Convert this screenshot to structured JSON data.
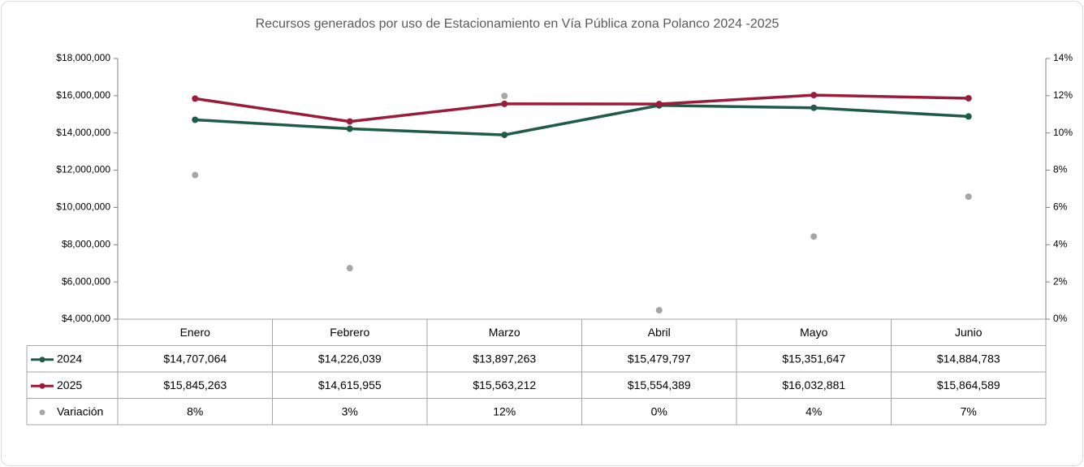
{
  "chart_data": {
    "type": "line",
    "title": "Recursos generados por uso de Estacionamiento en Vía Pública zona Polanco 2024 -2025",
    "categories": [
      "Enero",
      "Febrero",
      "Marzo",
      "Abril",
      "Mayo",
      "Junio"
    ],
    "series": [
      {
        "name": "2024",
        "color": "#1e5c45",
        "values": [
          14707064,
          14226039,
          13897263,
          15479797,
          15351647,
          14884783
        ],
        "value_labels": [
          "$14,707,064",
          "$14,226,039",
          "$13,897,263",
          "$15,479,797",
          "$15,351,647",
          "$14,884,783"
        ]
      },
      {
        "name": "2025",
        "color": "#9b1b3b",
        "values": [
          15845263,
          14615955,
          15563212,
          15554389,
          16032881,
          15864589
        ],
        "value_labels": [
          "$15,845,263",
          "$14,615,955",
          "$15,563,212",
          "$15,554,389",
          "$16,032,881",
          "$15,864,589"
        ]
      },
      {
        "name": "Variación",
        "color": "#a6a6a6",
        "axis": "y2",
        "type": "scatter",
        "values": [
          7.74,
          2.74,
          11.99,
          0.48,
          4.44,
          6.58
        ],
        "value_labels": [
          "8%",
          "3%",
          "12%",
          "0%",
          "4%",
          "7%"
        ]
      }
    ],
    "ylim": [
      4000000,
      18000000
    ],
    "yticks": [
      {
        "value": 4000000,
        "label": "$4,000,000"
      },
      {
        "value": 6000000,
        "label": "$6,000,000"
      },
      {
        "value": 8000000,
        "label": "$8,000,000"
      },
      {
        "value": 10000000,
        "label": "$10,000,000"
      },
      {
        "value": 12000000,
        "label": "$12,000,000"
      },
      {
        "value": 14000000,
        "label": "$14,000,000"
      },
      {
        "value": 16000000,
        "label": "$16,000,000"
      },
      {
        "value": 18000000,
        "label": "$18,000,000"
      }
    ],
    "y2lim": [
      0,
      14
    ],
    "y2ticks": [
      {
        "value": 0,
        "label": "0%"
      },
      {
        "value": 2,
        "label": "2%"
      },
      {
        "value": 4,
        "label": "4%"
      },
      {
        "value": 6,
        "label": "6%"
      },
      {
        "value": 8,
        "label": "8%"
      },
      {
        "value": 10,
        "label": "10%"
      },
      {
        "value": 12,
        "label": "12%"
      },
      {
        "value": 14,
        "label": "14%"
      }
    ],
    "grid": false,
    "data_table": true
  }
}
